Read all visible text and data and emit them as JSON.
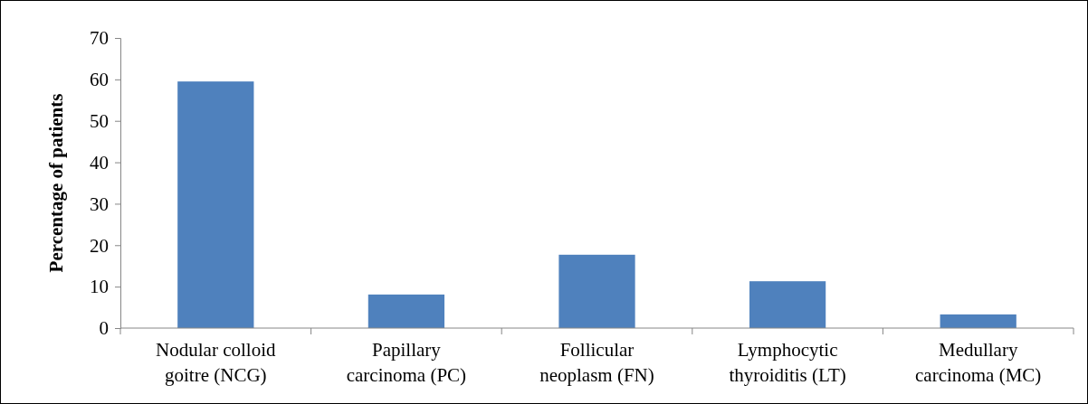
{
  "chart_data": {
    "type": "bar",
    "ylabel": "Percentage of patients",
    "categories": [
      "Nodular colloid goitre (NCG)",
      "Papillary carcinoma (PC)",
      "Follicular neoplasm (FN)",
      "Lymphocytic thyroiditis (LT)",
      "Medullary carcinoma (MC)"
    ],
    "values": [
      59.5,
      8.1,
      17.7,
      11.3,
      3.3
    ],
    "color": "#4f81bd",
    "ylim": [
      0,
      70
    ],
    "yticks": [
      0,
      10,
      20,
      30,
      40,
      50,
      60,
      70
    ],
    "grid": false
  }
}
